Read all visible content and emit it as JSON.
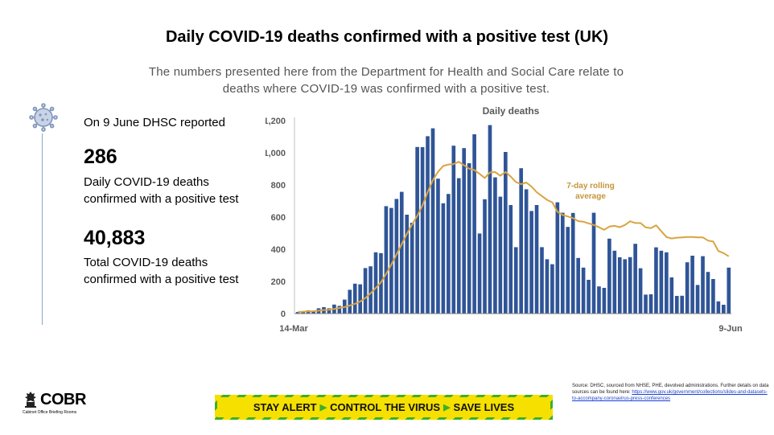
{
  "header": {
    "title": "Daily COVID-19 deaths confirmed with a positive test (UK)",
    "subtitle_line1": "The numbers presented here from the Department for Health and Social Care relate to",
    "subtitle_line2": "deaths where COVID-19 was confirmed with a positive test."
  },
  "stats": {
    "reported": "On 9 June DHSC reported",
    "daily_value": "286",
    "daily_desc_1": "Daily COVID-19 deaths",
    "daily_desc_2": "confirmed with a positive test",
    "total_value": "40,883",
    "total_desc_1": "Total COVID-19 deaths",
    "total_desc_2": "confirmed with a positive test"
  },
  "icons": {
    "virus": "virus-icon",
    "crest": "crest-icon"
  },
  "footer": {
    "cobr": "COBR",
    "cobr_sub": "Cabinet Office Briefing Rooms",
    "banner": [
      "STAY ALERT",
      "CONTROL THE VIRUS",
      "SAVE LIVES"
    ],
    "source_text": "Source: DHSC, sourced from NHSE, PHE, devolved administrations. Further details on data sources can be found here:",
    "source_link": "https://www.gov.uk/government/collections/slides-and-datasets-to-accompany-coronavirus-press-conferences"
  },
  "colors": {
    "bar": "#2f5597",
    "line": "#d9a441",
    "label": "#c5963a",
    "banner_yellow": "#f5e000",
    "banner_green": "#3fae29"
  },
  "chart_data": {
    "type": "bar",
    "title": "Daily deaths",
    "x_start_label": "14-Mar",
    "x_end_label": "9-Jun",
    "ylim": [
      0,
      1200
    ],
    "yticks": [
      0,
      200,
      400,
      600,
      800,
      1000,
      1200
    ],
    "ytick_labels": [
      "0",
      "200",
      "400",
      "600",
      "800",
      "1,000",
      "1,200"
    ],
    "series": [
      {
        "type": "bar",
        "values": [
          10,
          14,
          20,
          16,
          33,
          40,
          33,
          56,
          48,
          87,
          148,
          186,
          182,
          283,
          294,
          381,
          376,
          668,
          657,
          713,
          757,
          615,
          565,
          1036,
          1035,
          1103,
          1152,
          839,
          686,
          744,
          1044,
          842,
          1029,
          935,
          1115,
          498,
          711,
          1172,
          847,
          727,
          1005,
          675,
          413,
          904,
          773,
          638,
          675,
          413,
          338,
          307,
          692,
          627,
          539,
          626,
          346,
          286,
          210,
          627,
          169,
          160,
          466,
          391,
          350,
          338,
          351,
          434,
          282,
          118,
          120,
          412,
          391,
          381,
          225,
          110,
          111,
          319,
          360,
          178,
          357,
          259,
          215,
          76,
          55,
          286
        ]
      },
      {
        "type": "line",
        "name": "7-day rolling average",
        "values": [
          10,
          12,
          14,
          15,
          18,
          22,
          24,
          29,
          35,
          41,
          50,
          61,
          75,
          97,
          126,
          159,
          194,
          247,
          305,
          367,
          432,
          496,
          554,
          608,
          672,
          755,
          829,
          882,
          918,
          927,
          930,
          944,
          922,
          901,
          893,
          869,
          843,
          878,
          880,
          857,
          881,
          852,
          818,
          805,
          815,
          790,
          755,
          731,
          707,
          692,
          633,
          613,
          604,
          594,
          575,
          571,
          561,
          551,
          537,
          521,
          541,
          546,
          537,
          551,
          574,
          563,
          563,
          536,
          531,
          549,
          513,
          476,
          467,
          472,
          474,
          476,
          476,
          474,
          474,
          454,
          448,
          389,
          376,
          356
        ]
      }
    ]
  }
}
